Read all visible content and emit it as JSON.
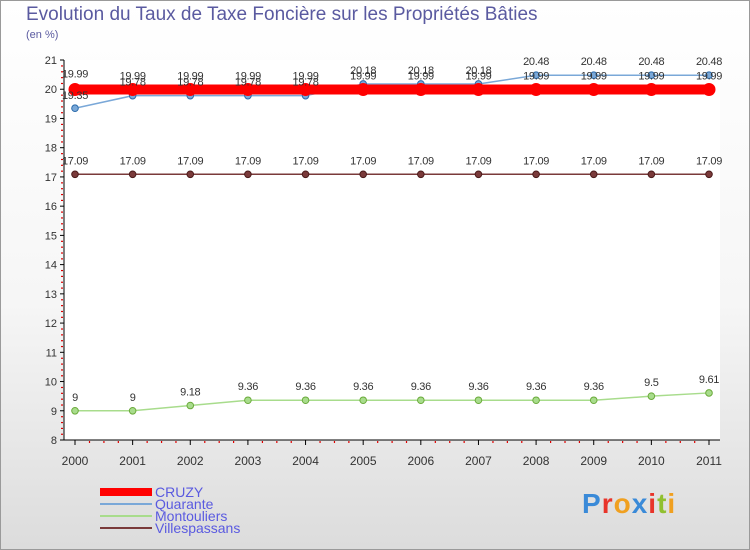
{
  "chart_data": {
    "type": "line",
    "title": "Evolution du Taux de Taxe Foncière sur les Propriétés Bâties",
    "subtitle": "(en %)",
    "xlabel": "",
    "ylabel": "(en %)",
    "ylim": [
      8,
      21
    ],
    "yticks": [
      8,
      9,
      10,
      11,
      12,
      13,
      14,
      15,
      16,
      17,
      18,
      19,
      20,
      21
    ],
    "x": [
      "2000",
      "2001",
      "2002",
      "2003",
      "2004",
      "2005",
      "2006",
      "2007",
      "2008",
      "2009",
      "2010",
      "2011"
    ],
    "legend_position": "bottom-left",
    "series": [
      {
        "name": "CRUZY",
        "color": "#ff0000",
        "values": [
          19.99,
          19.99,
          19.99,
          19.99,
          19.99,
          19.99,
          19.99,
          19.99,
          19.99,
          19.99,
          19.99,
          19.99
        ],
        "labels": [
          "19.99",
          "19.99",
          "19.99",
          "19.99",
          "19.99",
          "19.99",
          "19.99",
          "19.99",
          "19.99",
          "19.99",
          "19.99",
          "19.99"
        ]
      },
      {
        "name": "Quarante",
        "color": "#7aa8d8",
        "values": [
          19.35,
          19.78,
          19.78,
          19.78,
          19.78,
          20.18,
          20.18,
          20.18,
          20.48,
          20.48,
          20.48,
          20.48
        ],
        "labels": [
          "19.35",
          "19.78",
          "19.78",
          "19.78",
          "19.78",
          "20.18",
          "20.18",
          "20.18",
          "20.48",
          "20.48",
          "20.48",
          "20.48"
        ]
      },
      {
        "name": "Montouliers",
        "color": "#a8dc8c",
        "values": [
          9,
          9,
          9.18,
          9.36,
          9.36,
          9.36,
          9.36,
          9.36,
          9.36,
          9.36,
          9.5,
          9.61
        ],
        "labels": [
          "9",
          "9",
          "9.18",
          "9.36",
          "9.36",
          "9.36",
          "9.36",
          "9.36",
          "9.36",
          "9.36",
          "9.5",
          "9.61"
        ]
      },
      {
        "name": "Villespassans",
        "color": "#7a3a3a",
        "values": [
          17.09,
          17.09,
          17.09,
          17.09,
          17.09,
          17.09,
          17.09,
          17.09,
          17.09,
          17.09,
          17.09,
          17.09
        ],
        "labels": [
          "17.09",
          "17.09",
          "17.09",
          "17.09",
          "17.09",
          "17.09",
          "17.09",
          "17.09",
          "17.09",
          "17.09",
          "17.09",
          "17.09"
        ]
      }
    ]
  },
  "branding": {
    "logo_letters": [
      "P",
      "r",
      "o",
      "x",
      "i",
      "t",
      "i"
    ],
    "logo_colors": [
      "#3a8ad8",
      "#e8342a",
      "#f0a020",
      "#3a8ad8",
      "#e8342a",
      "#90c030",
      "#f0a020"
    ]
  }
}
